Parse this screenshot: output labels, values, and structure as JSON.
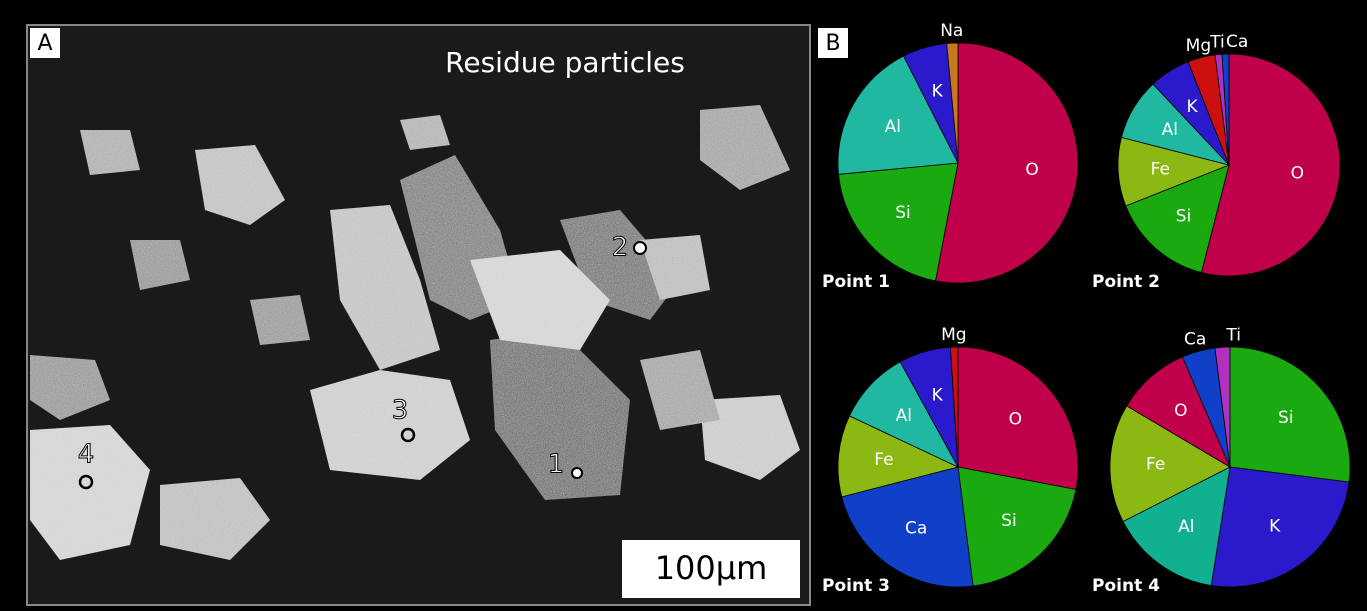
{
  "panel_a": {
    "label": "A",
    "title": "Residue particles",
    "points": [
      "1",
      "2",
      "3",
      "4"
    ],
    "scale_bar": "100μm"
  },
  "panel_b": {
    "label": "B"
  },
  "chart_data": [
    {
      "type": "pie",
      "title": "Point 1",
      "categories": [
        "O",
        "Si",
        "Al",
        "K",
        "Na"
      ],
      "values": [
        53,
        20.5,
        19,
        6,
        1.5
      ],
      "colors": [
        "#c0004a",
        "#1aaa10",
        "#20b8a0",
        "#2a1acc",
        "#c87820"
      ]
    },
    {
      "type": "pie",
      "title": "Point 2",
      "categories": [
        "O",
        "Si",
        "Fe",
        "Al",
        "K",
        "Mg",
        "Ti",
        "Ca"
      ],
      "values": [
        54,
        15,
        10,
        9,
        6,
        4,
        1,
        1
      ],
      "colors": [
        "#c0004a",
        "#1aaa10",
        "#8cb814",
        "#20b8a0",
        "#2a1acc",
        "#cc1010",
        "#b030c0",
        "#1040c8"
      ]
    },
    {
      "type": "pie",
      "title": "Point 3",
      "categories": [
        "O",
        "Si",
        "Ca",
        "Fe",
        "Al",
        "K",
        "Mg"
      ],
      "values": [
        28,
        20,
        23,
        11,
        10,
        7,
        1
      ],
      "colors": [
        "#c0004a",
        "#1aaa10",
        "#1040c8",
        "#8cb814",
        "#20b8a0",
        "#2a1acc",
        "#cc1010"
      ]
    },
    {
      "type": "pie",
      "title": "Point 4",
      "categories": [
        "Si",
        "K",
        "Al",
        "Fe",
        "O",
        "Ca",
        "Ti"
      ],
      "values": [
        27,
        25.5,
        15,
        16,
        10,
        4.5,
        2
      ],
      "colors": [
        "#1aaa10",
        "#2a1acc",
        "#10b090",
        "#8cb814",
        "#c0004a",
        "#1040c8",
        "#b030c0"
      ]
    }
  ]
}
